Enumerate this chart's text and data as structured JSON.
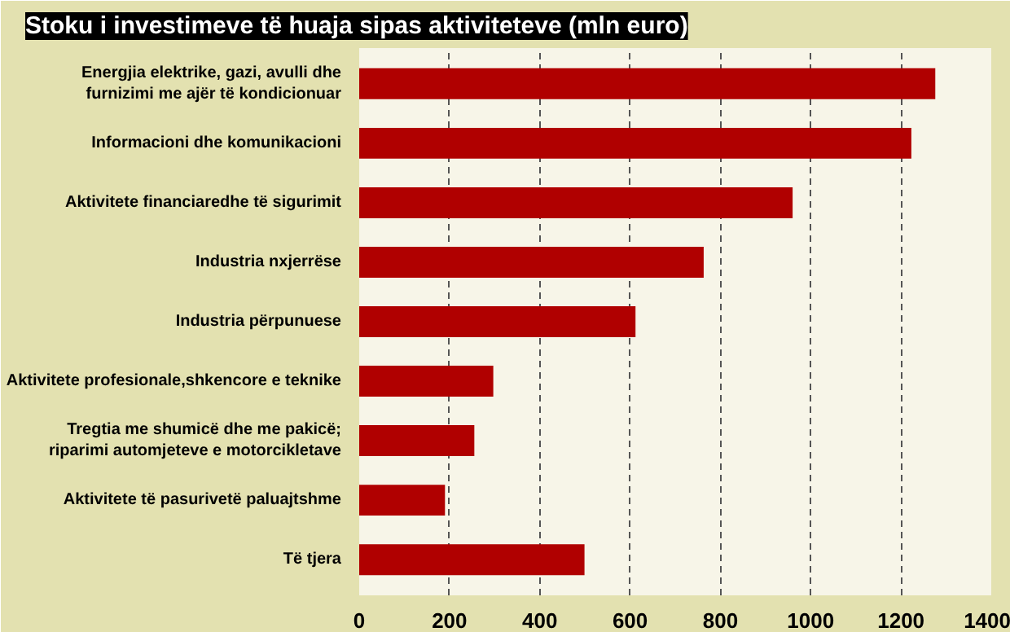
{
  "chart_data": {
    "type": "bar",
    "orientation": "horizontal",
    "title": "Stoku i investimeve të huaja sipas aktiviteteve (mln euro)",
    "categories": [
      "Energjia elektrike, gazi, avulli dhe\nfurnizimi me ajër të kondicionuar",
      "Informacioni dhe komunikacioni",
      "Aktivitete financiaredhe të sigurimit",
      "Industria nxjerrëse",
      "Industria përpunuese",
      "Aktivitete profesionale,shkencore e teknike",
      "Tregtia me shumicë dhe me pakicë;\nriparimi automjeteve e motorcikletave",
      "Aktivitete të pasurivetë paluajtshme",
      "Të tjera"
    ],
    "values": [
      1276,
      1223,
      960,
      763,
      612,
      297,
      255,
      190,
      499
    ],
    "color": "#b00000",
    "xlim": [
      0,
      1400
    ],
    "xticks": [
      0,
      200,
      400,
      600,
      800,
      1000,
      1200,
      1400
    ],
    "grid": "x"
  }
}
